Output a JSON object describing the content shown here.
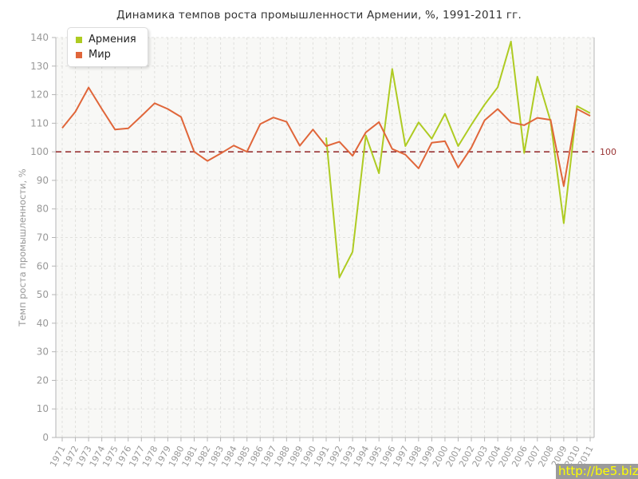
{
  "title": "Динамика темпов роста промышленности Армении, %, 1991-2011 гг.",
  "watermark": "http://be5.biz/",
  "legend": {
    "position": "top-left",
    "items": [
      {
        "label": "Армения",
        "color": "#aecb22"
      },
      {
        "label": "Мир",
        "color": "#e0663a"
      }
    ]
  },
  "colors": {
    "plot_bg": "#f8f8f6",
    "grid": "#e0e0dd",
    "axis": "#b5b5b5",
    "tick_label": "#999999",
    "title_text": "#333333",
    "ref_line": "#993333",
    "watermark_bg": "#9b9b9b",
    "watermark_text": "#ffff00"
  },
  "chart_data": {
    "type": "line",
    "title": "Динамика темпов роста промышленности Армении, %, 1991-2011 гг.",
    "xlabel": "",
    "ylabel": "Темп роста промышленности, %",
    "ylim": [
      0,
      140
    ],
    "ytick_step": 10,
    "grid": true,
    "legend_position": "top-left",
    "ref_line": {
      "value": 100,
      "label": "100"
    },
    "x": [
      1971,
      1972,
      1973,
      1974,
      1975,
      1976,
      1977,
      1978,
      1979,
      1980,
      1981,
      1982,
      1983,
      1984,
      1985,
      1986,
      1987,
      1988,
      1989,
      1990,
      1991,
      1992,
      1993,
      1994,
      1995,
      1996,
      1997,
      1998,
      1999,
      2000,
      2001,
      2002,
      2003,
      2004,
      2005,
      2006,
      2007,
      2008,
      2009,
      2010,
      2011
    ],
    "series": [
      {
        "name": "Армения",
        "color": "#aecb22",
        "values": [
          null,
          null,
          null,
          null,
          null,
          null,
          null,
          null,
          null,
          null,
          null,
          null,
          null,
          null,
          null,
          null,
          null,
          null,
          null,
          null,
          105,
          56,
          65,
          105.7,
          92.5,
          129,
          102,
          110.3,
          104.6,
          113.3,
          102,
          109.5,
          116.5,
          122.6,
          138.6,
          99.6,
          126.3,
          110.7,
          75,
          116,
          113.5
        ]
      },
      {
        "name": "Мир",
        "color": "#e0663a",
        "values": [
          108.3,
          114,
          122.5,
          115,
          107.8,
          108.2,
          112.5,
          117,
          115,
          112.2,
          100,
          96.8,
          99.4,
          102.2,
          100,
          109.7,
          112,
          110.5,
          102.1,
          107.8,
          102,
          103.5,
          98.6,
          106.8,
          110.4,
          101,
          99,
          94.2,
          103.2,
          103.7,
          94.5,
          101.5,
          111,
          115,
          110.3,
          109.3,
          111.9,
          111.2,
          88,
          115,
          112.6
        ]
      }
    ]
  }
}
